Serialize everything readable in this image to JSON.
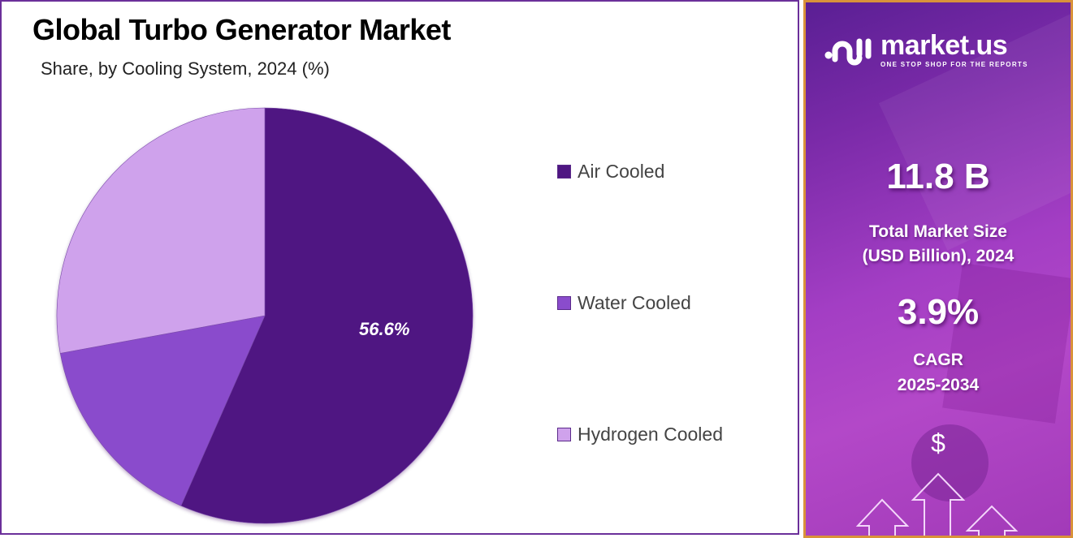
{
  "header": {
    "title": "Global Turbo Generator Market",
    "subtitle": "Share, by Cooling System, 2024 (%)"
  },
  "chart_data": {
    "type": "pie",
    "title": "Global Turbo Generator Market",
    "subtitle": "Share, by Cooling System, 2024 (%)",
    "categories": [
      "Air Cooled",
      "Water Cooled",
      "Hydrogen Cooled"
    ],
    "values": [
      56.6,
      15.5,
      27.9
    ],
    "colors": [
      "#4f1682",
      "#8a4ccc",
      "#cfa2ec"
    ],
    "data_labels": [
      "56.6%",
      "",
      ""
    ],
    "start_angle": "12 o'clock, clockwise",
    "legend_position": "right",
    "note": "Only Air Cooled share labeled; Water Cooled and Hydrogen Cooled values estimated from slice angles"
  },
  "pie": {
    "label": "56.6%"
  },
  "legend": {
    "items": [
      {
        "label": "Air Cooled",
        "color": "#4f1682"
      },
      {
        "label": "Water Cooled",
        "color": "#8a4ccc"
      },
      {
        "label": "Hydrogen Cooled",
        "color": "#cfa2ec"
      }
    ]
  },
  "sidebar": {
    "brand": {
      "name": "market.us",
      "tagline": "ONE STOP SHOP FOR THE REPORTS"
    },
    "market_size": {
      "value": "11.8 B",
      "label_line1": "Total Market Size",
      "label_line2": "(USD Billion), 2024"
    },
    "cagr": {
      "value": "3.9%",
      "label_line1": "CAGR",
      "label_line2": "2025-2034"
    },
    "icon": {
      "symbol": "$"
    }
  }
}
